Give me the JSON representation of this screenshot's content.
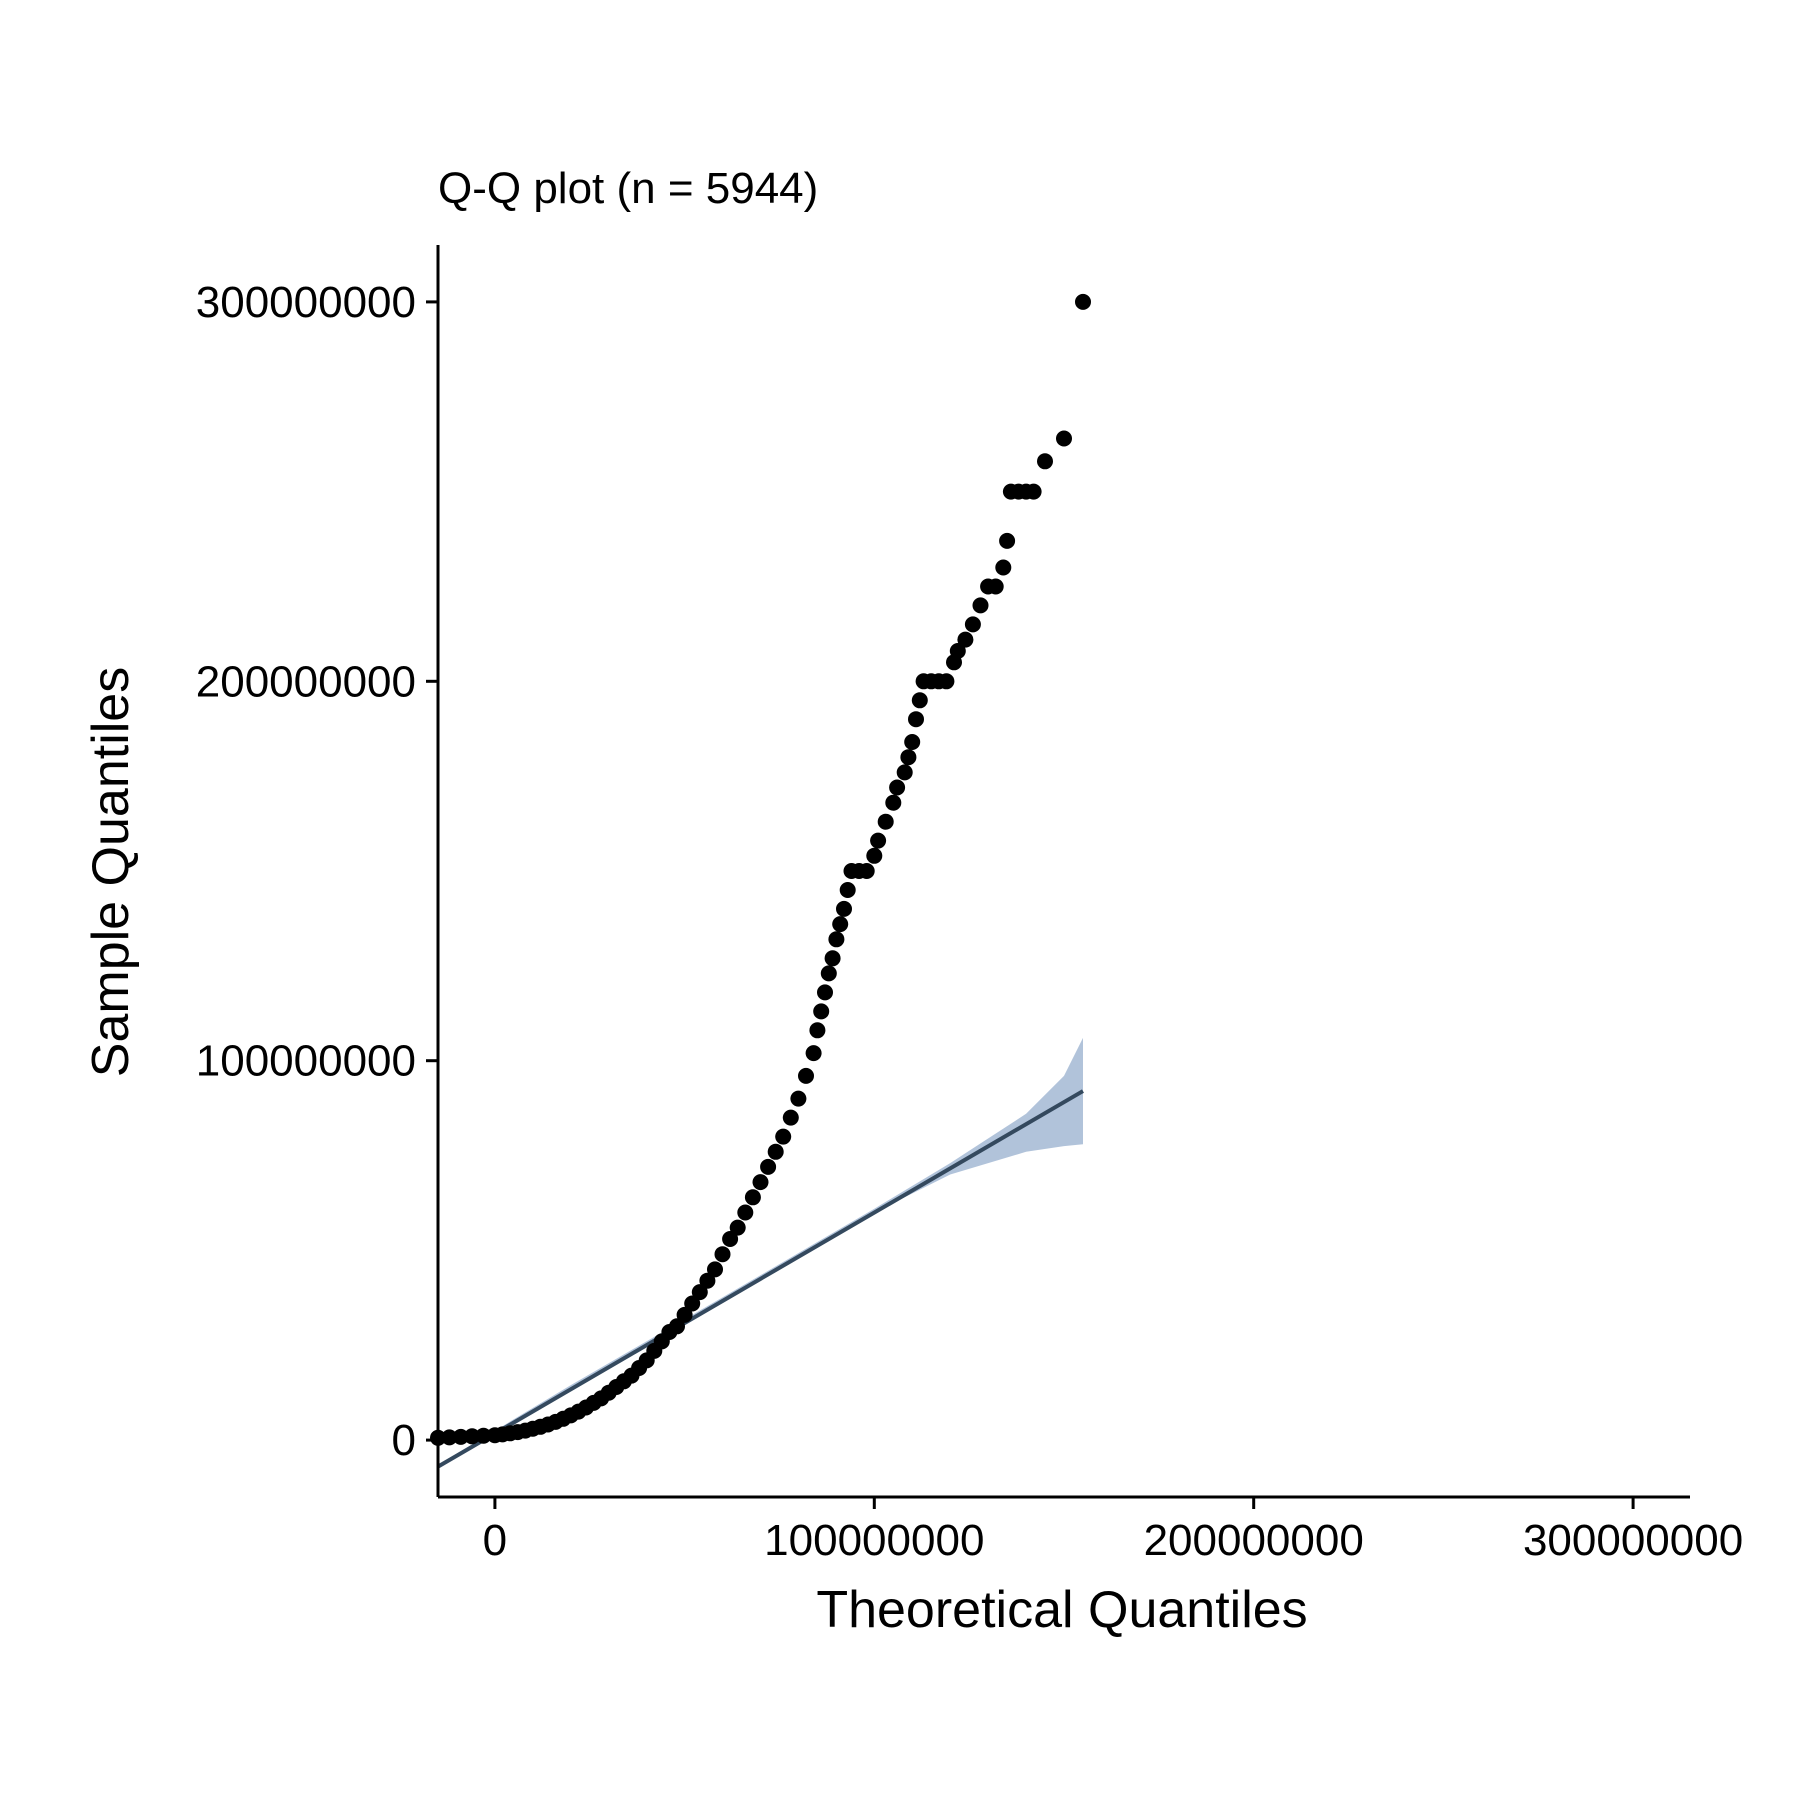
{
  "chart_data": {
    "type": "scatter",
    "title": "Q-Q plot (n = 5944)",
    "xlabel": "Theoretical Quantiles",
    "ylabel": "Sample Quantiles",
    "xlim": [
      -15000000,
      315000000
    ],
    "ylim": [
      -15000000,
      315000000
    ],
    "x_ticks": [
      0,
      100000000,
      200000000,
      300000000
    ],
    "x_tick_labels": [
      "0",
      "100000000",
      "200000000",
      "300000000"
    ],
    "y_ticks": [
      0,
      100000000,
      200000000,
      300000000
    ],
    "y_tick_labels": [
      "0",
      "100000000",
      "200000000",
      "300000000"
    ],
    "grid": false,
    "legend": "none",
    "n": 5944,
    "series": [
      {
        "values_xy": [
          [
            -15000000,
            600000
          ],
          [
            -12000000,
            700000
          ],
          [
            -9000000,
            850000
          ],
          [
            -6000000,
            1000000
          ],
          [
            -3000000,
            1150000
          ],
          [
            0,
            1300000
          ],
          [
            2000000,
            1500000
          ],
          [
            4000000,
            1800000
          ],
          [
            6000000,
            2100000
          ],
          [
            8000000,
            2500000
          ],
          [
            10000000,
            3000000
          ],
          [
            12000000,
            3500000
          ],
          [
            14000000,
            4100000
          ],
          [
            16000000,
            4800000
          ],
          [
            18000000,
            5600000
          ],
          [
            20000000,
            6500000
          ],
          [
            22000000,
            7500000
          ],
          [
            24000000,
            8600000
          ],
          [
            26000000,
            9800000
          ],
          [
            28000000,
            11000000
          ],
          [
            30000000,
            12500000
          ],
          [
            32000000,
            14000000
          ],
          [
            34000000,
            15500000
          ],
          [
            36000000,
            17000000
          ],
          [
            38000000,
            19000000
          ],
          [
            40000000,
            21000000
          ],
          [
            42000000,
            23500000
          ],
          [
            44000000,
            26000000
          ],
          [
            46000000,
            28500000
          ],
          [
            48000000,
            30000000
          ],
          [
            50000000,
            33000000
          ],
          [
            52000000,
            36000000
          ],
          [
            54000000,
            39000000
          ],
          [
            56000000,
            42000000
          ],
          [
            58000000,
            45000000
          ],
          [
            60000000,
            49000000
          ],
          [
            62000000,
            53000000
          ],
          [
            64000000,
            56000000
          ],
          [
            66000000,
            60000000
          ],
          [
            68000000,
            64000000
          ],
          [
            70000000,
            68000000
          ],
          [
            72000000,
            72000000
          ],
          [
            74000000,
            76000000
          ],
          [
            76000000,
            80000000
          ],
          [
            78000000,
            85000000
          ],
          [
            80000000,
            90000000
          ],
          [
            82000000,
            96000000
          ],
          [
            84000000,
            102000000
          ],
          [
            85000000,
            108000000
          ],
          [
            86000000,
            113000000
          ],
          [
            87000000,
            118000000
          ],
          [
            88000000,
            123000000
          ],
          [
            89000000,
            127000000
          ],
          [
            90000000,
            132000000
          ],
          [
            91000000,
            136000000
          ],
          [
            92000000,
            140000000
          ],
          [
            93000000,
            145000000
          ],
          [
            94000000,
            150000000
          ],
          [
            96000000,
            150000000
          ],
          [
            98000000,
            150000000
          ],
          [
            100000000,
            154000000
          ],
          [
            101000000,
            158000000
          ],
          [
            103000000,
            163000000
          ],
          [
            105000000,
            168000000
          ],
          [
            106000000,
            172000000
          ],
          [
            108000000,
            176000000
          ],
          [
            109000000,
            180000000
          ],
          [
            110000000,
            184000000
          ],
          [
            111000000,
            190000000
          ],
          [
            112000000,
            195000000
          ],
          [
            113000000,
            200000000
          ],
          [
            115000000,
            200000000
          ],
          [
            117000000,
            200000000
          ],
          [
            119000000,
            200000000
          ],
          [
            121000000,
            205000000
          ],
          [
            122000000,
            208000000
          ],
          [
            124000000,
            211000000
          ],
          [
            126000000,
            215000000
          ],
          [
            128000000,
            220000000
          ],
          [
            130000000,
            225000000
          ],
          [
            132000000,
            225000000
          ],
          [
            134000000,
            230000000
          ],
          [
            135000000,
            237000000
          ],
          [
            136000000,
            250000000
          ],
          [
            138000000,
            250000000
          ],
          [
            140000000,
            250000000
          ],
          [
            142000000,
            250000000
          ],
          [
            145000000,
            258000000
          ],
          [
            150000000,
            264000000
          ],
          [
            155000000,
            300000000
          ]
        ]
      }
    ],
    "reference_line": {
      "x": [
        -15000000,
        155000000
      ],
      "y": [
        -7000000,
        92000000
      ],
      "color": "#34495e"
    },
    "confidence_band": {
      "x": [
        -15000000,
        20000000,
        60000000,
        100000000,
        120000000,
        140000000,
        150000000,
        155000000
      ],
      "lower": [
        -7500000,
        13500000,
        37000000,
        60000000,
        70000000,
        76000000,
        77500000,
        78000000
      ],
      "upper": [
        -6500000,
        14500000,
        37600000,
        61000000,
        73000000,
        86000000,
        96000000,
        106000000
      ],
      "color": "#a9bcd6"
    },
    "colors": {
      "points": "#000000",
      "line": "#34495e",
      "band": "#a9bcd6",
      "axis": "#000000"
    }
  }
}
